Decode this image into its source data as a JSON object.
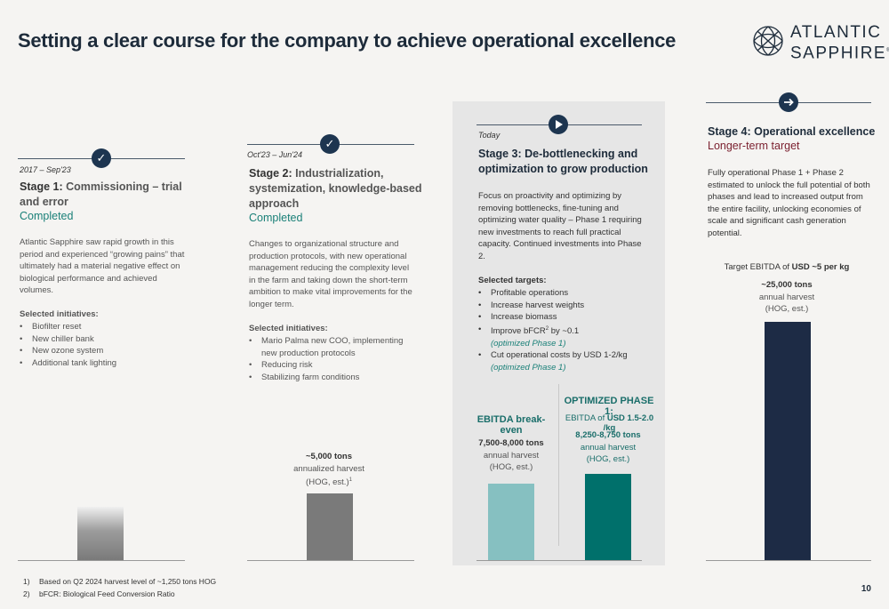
{
  "title": "Setting a clear course for the company to achieve operational excellence",
  "logo": {
    "line1": "ATLANTIC",
    "line2": "SAPPHIRE",
    "mark": "®"
  },
  "stage1": {
    "period": "2017 – Sep'23",
    "label": "Stage 1:",
    "name": "Commissioning – trial and error",
    "status": "Completed",
    "check": "✓",
    "description": "Atlantic Sapphire saw rapid growth in this period and experienced “growing pains” that ultimately had a material negative effect on biological performance and achieved volumes.",
    "initiatives_title": "Selected initiatives:",
    "initiatives": [
      "Biofilter reset",
      "New chiller bank",
      "New ozone system",
      "Additional tank lighting"
    ],
    "bar_color": "#7a7a7a"
  },
  "stage2": {
    "period": "Oct'23 – Jun'24",
    "label": "Stage 2:",
    "name": "Industrialization, systemization, knowledge-based approach",
    "status": "Completed",
    "check": "✓",
    "description": "Changes to organizational structure and production protocols, with new operational management reducing the complexity level in the farm and taking down the short-term ambition to make vital improvements for the longer term.",
    "initiatives_title": "Selected initiatives:",
    "initiatives": [
      "Mario Palma new COO, implementing new production protocols",
      "Reducing risk",
      "Stabilizing farm conditions"
    ],
    "volume": "~5,000 tons",
    "volume_sub": "annualized harvest",
    "volume_sub2": "(HOG, est.)",
    "volume_sup": "1",
    "bar_color": "#7a7a7a"
  },
  "stage3": {
    "period": "Today",
    "label": "Stage 3:",
    "name": "De-bottlenecking and optimization to grow production",
    "description": "Focus on proactivity and optimizing by removing bottlenecks, fine-tuning and optimizing water quality – Phase 1 requiring new investments to reach full practical capacity. Continued investments into Phase 2.",
    "targets_title": "Selected targets:",
    "targets": [
      {
        "text": "Profitable operations",
        "note": ""
      },
      {
        "text": "Increase harvest weights",
        "note": ""
      },
      {
        "text": "Increase biomass",
        "note": ""
      },
      {
        "text": "Improve bFCR",
        "sup": "2",
        "tail": " by ~0.1",
        "note": "(optimized Phase 1)"
      },
      {
        "text": "Cut operational costs by USD 1-2/kg",
        "note": "(optimized Phase 1)"
      }
    ],
    "breakeven": {
      "head": "EBITDA break-even",
      "volume": "7,500-8,000 tons",
      "sub": "annual harvest",
      "sub2": "(HOG, est.)",
      "bar_color": "#86c0c1"
    },
    "optimized": {
      "head": "OPTIMIZED PHASE 1:",
      "ebitda_prefix": "EBITDA of ",
      "ebitda_value": "USD 1.5-2.0 /kg",
      "volume": "8,250-8,750 tons",
      "sub": "annual harvest",
      "sub2": "(HOG, est.)",
      "bar_color": "#00706b"
    }
  },
  "stage4": {
    "label": "Stage 4:",
    "name": "Operational excellence",
    "status": "Longer-term target",
    "description": "Fully operational Phase 1 + Phase 2 estimated to unlock the full potential of both phases and lead to increased output from the entire facility, unlocking economies of scale and significant cash generation potential.",
    "target_prefix": "Target EBITDA of ",
    "target_value": "USD ~5 per kg",
    "volume": "~25,000 tons",
    "sub": "annual harvest",
    "sub2": "(HOG, est.)",
    "bar_color": "#1d2b45"
  },
  "footnotes": [
    {
      "num": "1)",
      "text": "Based on Q2 2024 harvest level of ~1,250 tons HOG"
    },
    {
      "num": "2)",
      "text": "bFCR: Biological Feed Conversion Ratio"
    }
  ],
  "page_number": "10"
}
